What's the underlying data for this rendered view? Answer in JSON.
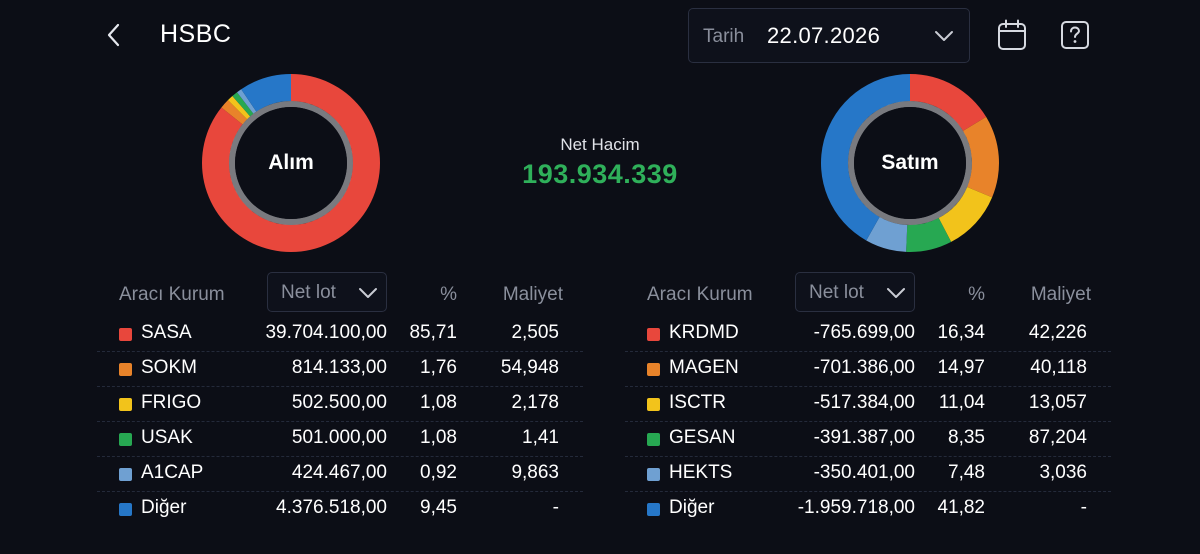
{
  "header": {
    "title": "HSBC",
    "date_label": "Tarih",
    "date_value": "22.07.2026"
  },
  "summary": {
    "net_label": "Net Hacim",
    "net_value": "193.934.339",
    "net_color": "#2fb05a"
  },
  "colors": [
    "#e8473c",
    "#e8832a",
    "#f2c31b",
    "#27a852",
    "#6fa0d2",
    "#2677c8"
  ],
  "buy": {
    "donut_label": "Alım",
    "headers": {
      "broker": "Aracı Kurum",
      "sort": "Net lot",
      "pct": "%",
      "cost": "Maliyet"
    },
    "rows": [
      {
        "name": "SASA",
        "lot": "39.704.100,00",
        "pct": "85,71",
        "cost": "2,505",
        "share": 85.71
      },
      {
        "name": "SOKM",
        "lot": "814.133,00",
        "pct": "1,76",
        "cost": "54,948",
        "share": 1.76
      },
      {
        "name": "FRIGO",
        "lot": "502.500,00",
        "pct": "1,08",
        "cost": "2,178",
        "share": 1.08
      },
      {
        "name": "USAK",
        "lot": "501.000,00",
        "pct": "1,08",
        "cost": "1,41",
        "share": 1.08
      },
      {
        "name": "A1CAP",
        "lot": "424.467,00",
        "pct": "0,92",
        "cost": "9,863",
        "share": 0.92
      },
      {
        "name": "Diğer",
        "lot": "4.376.518,00",
        "pct": "9,45",
        "cost": "-",
        "share": 9.45
      }
    ]
  },
  "sell": {
    "donut_label": "Satım",
    "headers": {
      "broker": "Aracı Kurum",
      "sort": "Net lot",
      "pct": "%",
      "cost": "Maliyet"
    },
    "rows": [
      {
        "name": "KRDMD",
        "lot": "-765.699,00",
        "pct": "16,34",
        "cost": "42,226",
        "share": 16.34
      },
      {
        "name": "MAGEN",
        "lot": "-701.386,00",
        "pct": "14,97",
        "cost": "40,118",
        "share": 14.97
      },
      {
        "name": "ISCTR",
        "lot": "-517.384,00",
        "pct": "11,04",
        "cost": "13,057",
        "share": 11.04
      },
      {
        "name": "GESAN",
        "lot": "-391.387,00",
        "pct": "8,35",
        "cost": "87,204",
        "share": 8.35
      },
      {
        "name": "HEKTS",
        "lot": "-350.401,00",
        "pct": "7,48",
        "cost": "3,036",
        "share": 7.48
      },
      {
        "name": "Diğer",
        "lot": "-1.959.718,00",
        "pct": "41,82",
        "cost": "-",
        "share": 41.82
      }
    ]
  }
}
